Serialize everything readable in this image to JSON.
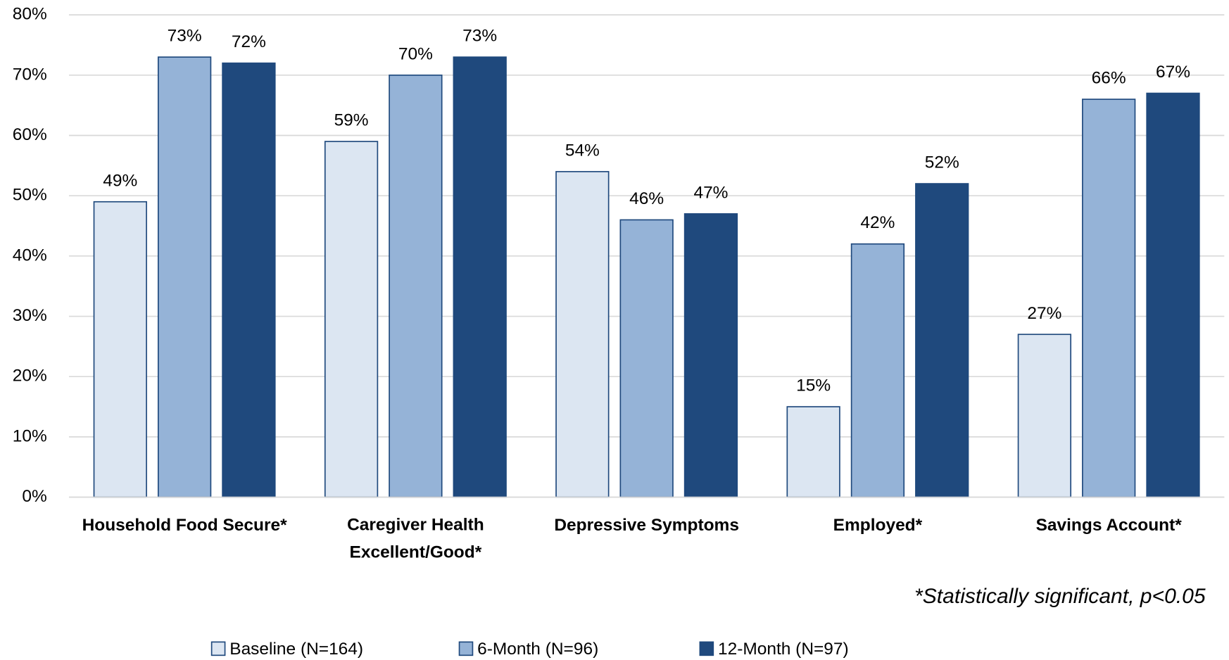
{
  "chart_data": {
    "type": "bar",
    "categories": [
      "Household Food Secure*",
      "Caregiver Health Excellent/Good*",
      "Depressive Symptoms",
      "Employed*",
      "Savings Account*"
    ],
    "series": [
      {
        "name": "Baseline (N=164)",
        "color": "#dce6f2",
        "values": [
          49,
          59,
          54,
          15,
          27
        ],
        "value_labels": [
          "49%",
          "59%",
          "54%",
          "15%",
          "27%"
        ]
      },
      {
        "name": "6-Month (N=96)",
        "color": "#95b3d7",
        "values": [
          73,
          70,
          46,
          42,
          66
        ],
        "value_labels": [
          "73%",
          "70%",
          "46%",
          "42%",
          "66%"
        ]
      },
      {
        "name": "12-Month (N=97)",
        "color": "#1f497d",
        "values": [
          72,
          73,
          47,
          52,
          67
        ],
        "value_labels": [
          "72%",
          "73%",
          "47%",
          "52%",
          "67%"
        ]
      }
    ],
    "ylim": [
      0,
      80
    ],
    "yticks": [
      {
        "value": 0,
        "label": "0%"
      },
      {
        "value": 10,
        "label": "10%"
      },
      {
        "value": 20,
        "label": "20%"
      },
      {
        "value": 30,
        "label": "30%"
      },
      {
        "value": 40,
        "label": "40%"
      },
      {
        "value": 50,
        "label": "50%"
      },
      {
        "value": 60,
        "label": "60%"
      },
      {
        "value": 70,
        "label": "70%"
      },
      {
        "value": 80,
        "label": "80%"
      }
    ],
    "grid": true,
    "legend": "bottom",
    "annotation": "*Statistically significant, p<0.05"
  }
}
